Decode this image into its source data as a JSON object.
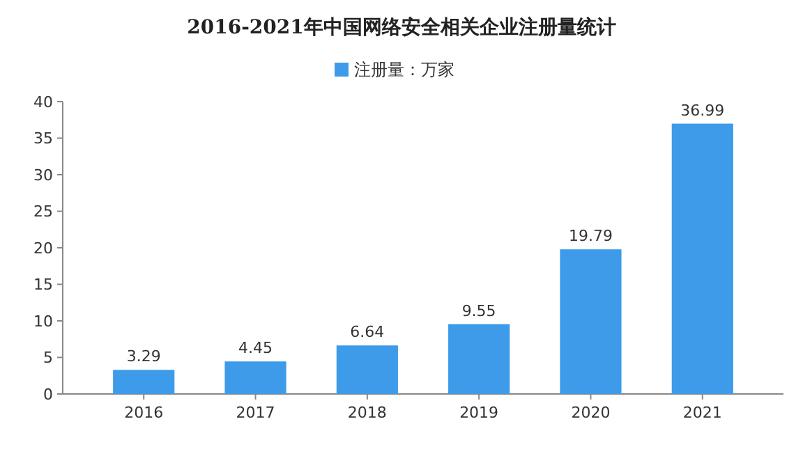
{
  "chart_data": {
    "type": "bar",
    "title": "2016-2021年中国网络安全相关企业注册量统计",
    "categories": [
      "2016",
      "2017",
      "2018",
      "2019",
      "2020",
      "2021"
    ],
    "series": [
      {
        "name": "注册量：万家",
        "color": "#3d9be9",
        "values": [
          3.29,
          4.45,
          6.64,
          9.55,
          19.79,
          36.99
        ]
      }
    ],
    "ylim": [
      0,
      40
    ],
    "yticks": [
      0,
      5,
      10,
      15,
      20,
      25,
      30,
      35,
      40
    ],
    "data_labels": true,
    "legend": "top",
    "grid": false
  }
}
